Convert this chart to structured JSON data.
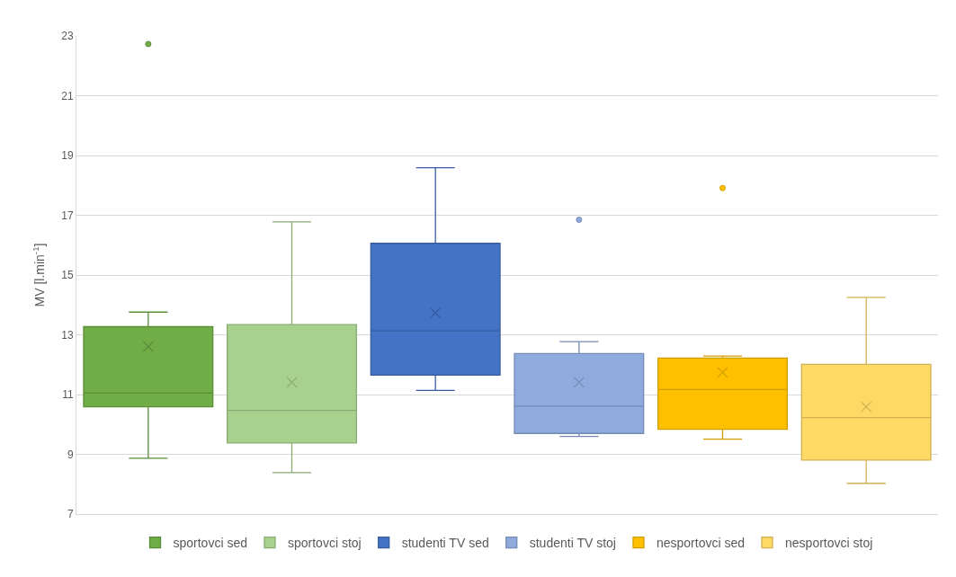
{
  "chart_data": {
    "type": "box",
    "ylabel": "MV [l.min$^{-1}$]",
    "categories": [
      null
    ],
    "series": [
      {
        "name": "sportovci sed",
        "color": "#70ad47",
        "boxes": [
          {
            "low": 8.87,
            "q1": 10.59,
            "median": 11.05,
            "q3": 13.27,
            "high": 13.76,
            "mean": 12.61,
            "outliers": [
              22.73
            ]
          }
        ]
      },
      {
        "name": "sportovci stoj",
        "color": "#a9d18e",
        "boxes": [
          {
            "low": 8.39,
            "q1": 9.38,
            "median": 10.47,
            "q3": 13.34,
            "high": 16.78,
            "mean": 11.41
          }
        ]
      },
      {
        "name": "studenti TV sed",
        "color": "#4472c4",
        "boxes": [
          {
            "low": 11.14,
            "q1": 11.65,
            "median": 13.13,
            "q3": 16.06,
            "high": 18.59,
            "mean": 13.73
          }
        ]
      },
      {
        "name": "studenti TV stoj",
        "color": "#8faadc",
        "boxes": [
          {
            "low": 9.6,
            "q1": 9.7,
            "median": 10.61,
            "q3": 12.37,
            "high": 12.77,
            "mean": 11.41,
            "outliers": [
              16.85
            ]
          }
        ]
      },
      {
        "name": "nesportovci sed",
        "color": "#ffc000",
        "boxes": [
          {
            "low": 9.51,
            "q1": 9.84,
            "median": 11.17,
            "q3": 12.22,
            "high": 12.29,
            "mean": 11.74,
            "outliers": [
              17.91
            ]
          }
        ]
      },
      {
        "name": "nesportovci stoj",
        "color": "#ffd966",
        "boxes": [
          {
            "low": 8.03,
            "q1": 8.81,
            "median": 10.23,
            "q3": 12.01,
            "high": 14.25,
            "mean": 10.59
          }
        ]
      }
    ],
    "ylim": [
      7,
      23
    ],
    "yticks": [
      7,
      9,
      11,
      13,
      15,
      17,
      19,
      21,
      23
    ],
    "grid": "y",
    "legend": "bottom",
    "tick_labels": "y"
  }
}
